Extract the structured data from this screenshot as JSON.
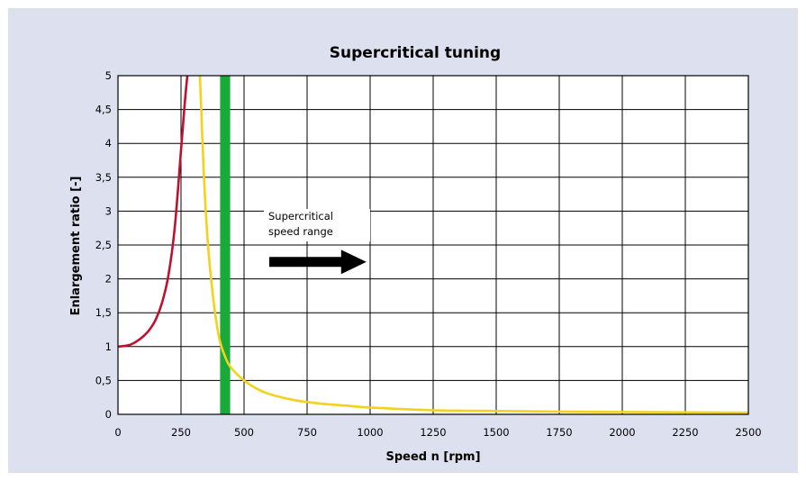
{
  "chart_data": {
    "type": "line",
    "title": "Supercritical tuning",
    "xlabel": "Speed n [rpm]",
    "ylabel": "Enlargement ratio [-]",
    "xlim": [
      0,
      2500
    ],
    "ylim": [
      0,
      5
    ],
    "x_ticks": [
      0,
      250,
      500,
      750,
      1000,
      1250,
      1500,
      1750,
      2000,
      2250,
      2500
    ],
    "x_tick_labels": [
      "0",
      "250",
      "500",
      "750",
      "1000",
      "1250",
      "1500",
      "1750",
      "2000",
      "2250",
      "2500"
    ],
    "y_ticks": [
      0,
      0.5,
      1,
      1.5,
      2,
      2.5,
      3,
      3.5,
      4,
      4.5,
      5
    ],
    "y_tick_labels": [
      "0",
      "0,5",
      "1",
      "1,5",
      "2",
      "2,5",
      "3",
      "3,5",
      "4",
      "4,5",
      "5"
    ],
    "grid": true,
    "series": [
      {
        "color": "#c0102f",
        "x": [
          0,
          25,
          50,
          75,
          100,
          125,
          150,
          175,
          200,
          225,
          250,
          265,
          275
        ],
        "y": [
          1.0,
          1.01,
          1.03,
          1.08,
          1.15,
          1.25,
          1.4,
          1.65,
          2.05,
          2.75,
          3.9,
          4.6,
          5.0
        ]
      },
      {
        "color": "#f2d21a",
        "x": [
          325,
          340,
          355,
          375,
          400,
          425,
          450,
          500,
          550,
          600,
          700,
          800,
          900,
          1000,
          1250,
          1500,
          1750,
          2000,
          2250,
          2500
        ],
        "y": [
          5.0,
          3.6,
          2.6,
          1.8,
          1.15,
          0.85,
          0.68,
          0.5,
          0.38,
          0.3,
          0.21,
          0.16,
          0.13,
          0.1,
          0.06,
          0.05,
          0.04,
          0.035,
          0.03,
          0.025
        ]
      }
    ],
    "highlight_band": {
      "x_from": 405,
      "x_to": 445,
      "color": "#1aaa3a"
    },
    "annotation": {
      "lines": [
        "Supercritical",
        "speed range"
      ],
      "arrow_x_from": 600,
      "arrow_x_to": 985,
      "arrow_y": 2.25
    }
  }
}
